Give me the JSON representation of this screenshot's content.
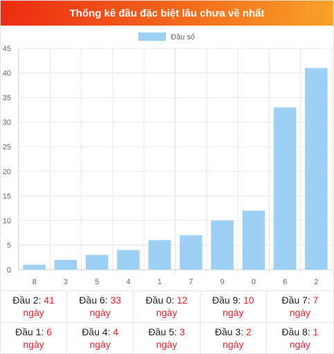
{
  "header": {
    "title": "Thống kê đầu đặc biệt lâu chưa về nhất"
  },
  "chart_data": {
    "type": "bar",
    "legend": {
      "label": "Đầu số",
      "position": "top"
    },
    "categories": [
      "8",
      "3",
      "5",
      "4",
      "1",
      "7",
      "9",
      "0",
      "6",
      "2"
    ],
    "values": [
      1,
      2,
      3,
      4,
      6,
      7,
      10,
      12,
      33,
      41
    ],
    "ylim": [
      0,
      45
    ],
    "yticks": [
      0,
      5,
      10,
      15,
      20,
      25,
      30,
      35,
      40,
      45
    ],
    "grid": true,
    "colors": {
      "bar": "#9ecff4",
      "grid": "#e8e8e8",
      "tick": "#666666"
    }
  },
  "stats": {
    "unit": "ngày",
    "items": [
      {
        "label": "Đầu 2:",
        "value": "41"
      },
      {
        "label": "Đầu 6:",
        "value": "33"
      },
      {
        "label": "Đầu 0:",
        "value": "12"
      },
      {
        "label": "Đầu 9:",
        "value": "10"
      },
      {
        "label": "Đầu 7:",
        "value": "7"
      },
      {
        "label": "Đầu 1:",
        "value": "6"
      },
      {
        "label": "Đầu 4:",
        "value": "4"
      },
      {
        "label": "Đầu 5:",
        "value": "3"
      },
      {
        "label": "Đầu 3:",
        "value": "2"
      },
      {
        "label": "Đầu 8:",
        "value": "1"
      }
    ]
  }
}
